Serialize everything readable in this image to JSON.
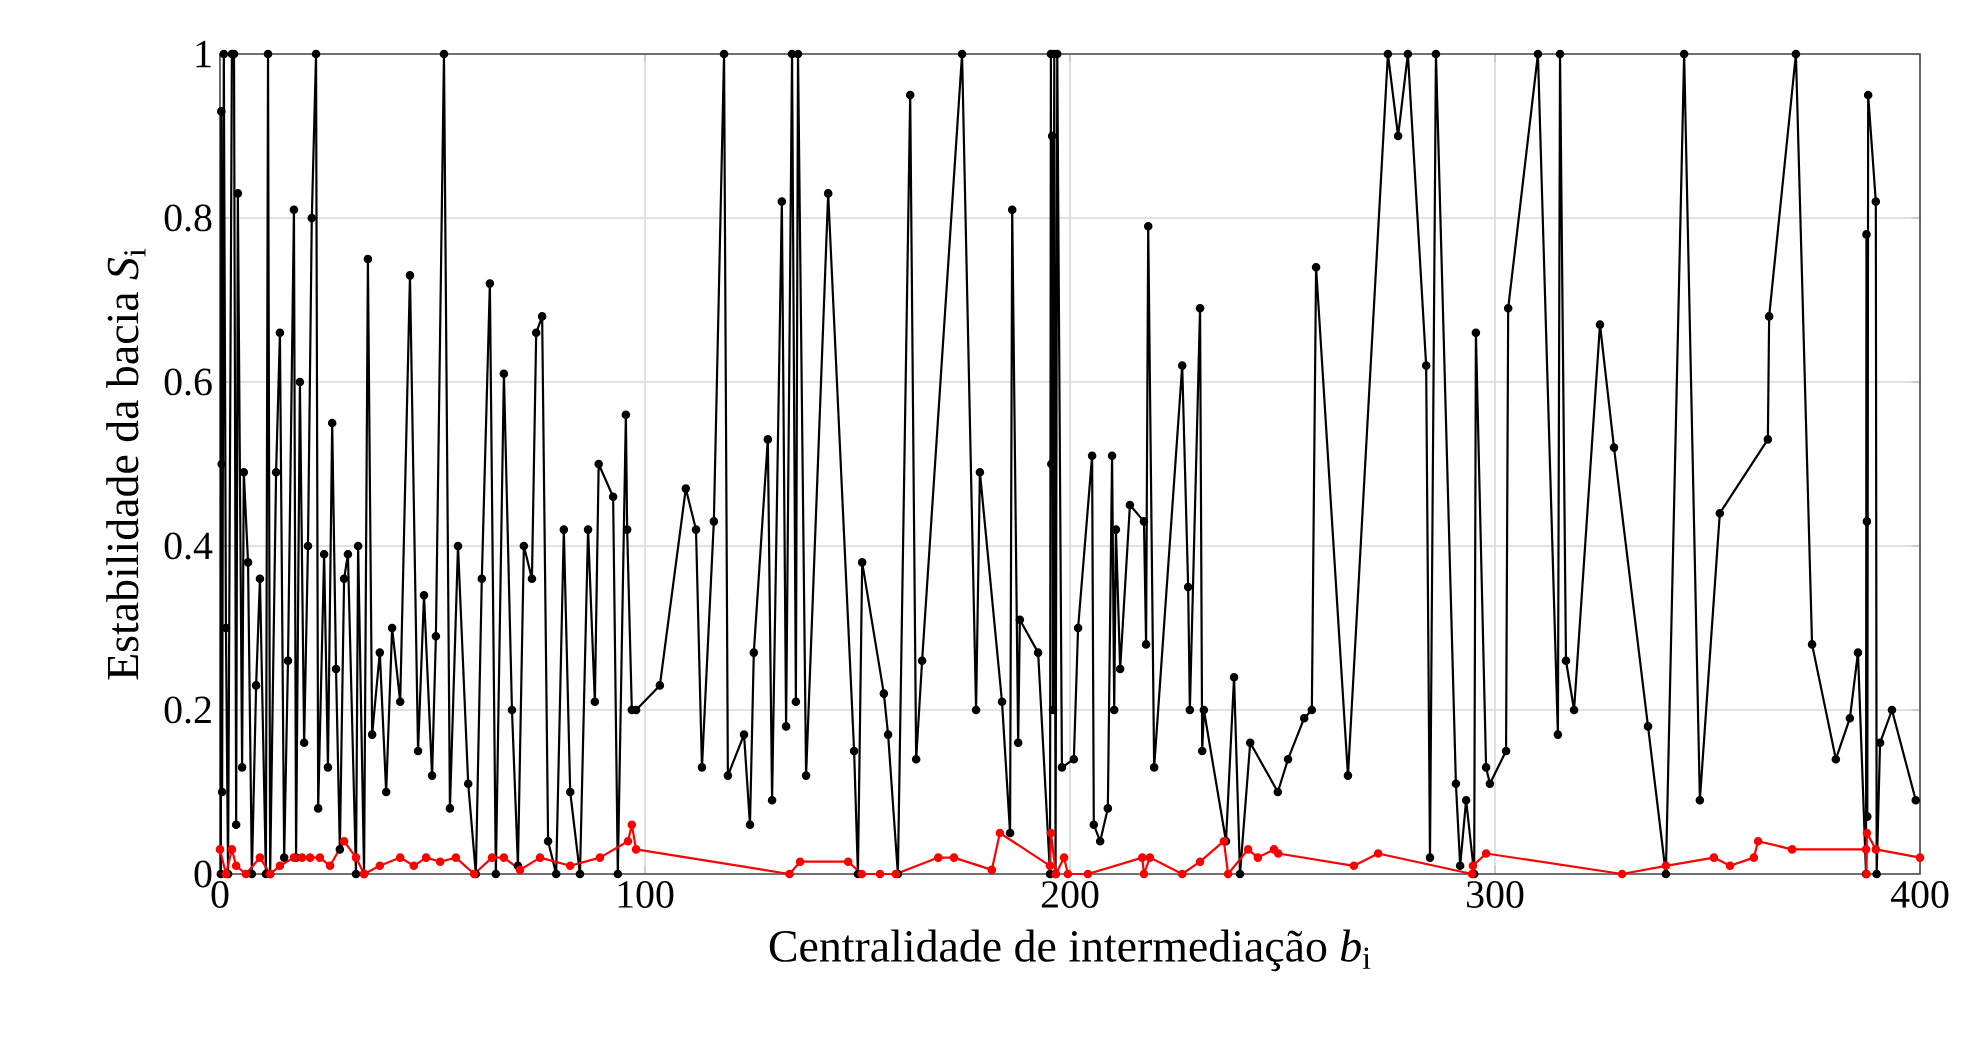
{
  "chart_data": {
    "type": "line",
    "xlabel": "Centralidade de intermediação *b*$_{i}$",
    "ylabel": "Estabilidade da bacia *S*$_{i}$",
    "xlim": [
      0,
      400
    ],
    "ylim": [
      0,
      1
    ],
    "xticks": [
      0,
      100,
      200,
      300,
      400
    ],
    "yticks": [
      0,
      0.2,
      0.4,
      0.6,
      0.8,
      1
    ],
    "grid": true,
    "marker": "circle",
    "line_style": "solid",
    "series": [
      {
        "color": "#000000",
        "x": [
          0.2,
          0.3,
          0.4,
          0.5,
          0.9,
          1.4,
          1.9,
          2.8,
          3.3,
          3.8,
          4.2,
          5.2,
          5.6,
          6.6,
          7.5,
          8.5,
          9.4,
          10.8,
          11.3,
          11.8,
          13.2,
          14.1,
          15.1,
          16.0,
          17.4,
          17.9,
          18.8,
          19.8,
          20.7,
          21.6,
          22.6,
          23.1,
          24.5,
          25.4,
          26.4,
          27.3,
          28.2,
          29.2,
          30.1,
          32.0,
          32.5,
          33.9,
          34.8,
          35.8,
          37.6,
          39.1,
          40.5,
          42.4,
          44.7,
          46.6,
          48.0,
          49.9,
          50.8,
          52.7,
          54.1,
          56.0,
          58.4,
          60.2,
          61.6,
          63.5,
          64.9,
          66.8,
          68.7,
          70.1,
          71.5,
          73.4,
          74.4,
          75.8,
          77.2,
          79.1,
          80.9,
          82.4,
          84.7,
          86.6,
          88.2,
          89.1,
          92.5,
          93.6,
          95.5,
          95.8,
          96.9,
          97.9,
          103.5,
          109.6,
          112.0,
          113.4,
          116.2,
          118.6,
          119.5,
          123.3,
          124.7,
          125.6,
          128.9,
          129.9,
          132.2,
          133.2,
          134.6,
          135.5,
          136.0,
          137.9,
          143.1,
          149.2,
          150.1,
          151.1,
          156.2,
          157.2,
          159.5,
          162.4,
          163.8,
          165.2,
          174.6,
          177.9,
          178.8,
          184.0,
          185.9,
          186.4,
          187.8,
          188.2,
          192.5,
          195.3,
          195.5,
          195.6,
          195.8,
          196.0,
          196.3,
          196.6,
          197.0,
          198.1,
          200.9,
          201.9,
          205.2,
          205.6,
          207.1,
          208.9,
          209.9,
          210.4,
          210.8,
          211.8,
          214.1,
          217.4,
          217.9,
          218.4,
          219.8,
          226.4,
          227.8,
          228.2,
          230.6,
          231.1,
          231.5,
          236.7,
          238.6,
          240.0,
          242.4,
          248.9,
          251.3,
          255.1,
          256.9,
          257.9,
          265.4,
          274.8,
          277.2,
          279.5,
          283.8,
          284.7,
          286.1,
          290.8,
          291.8,
          293.2,
          295.1,
          295.5,
          297.9,
          298.8,
          302.6,
          303.1,
          310.1,
          314.8,
          315.3,
          316.7,
          318.6,
          324.7,
          328.0,
          336.0,
          340.2,
          344.5,
          348.2,
          352.9,
          364.2,
          364.5,
          370.8,
          374.6,
          380.2,
          383.5,
          385.4,
          387.3,
          387.4,
          387.5,
          387.6,
          387.8,
          389.6,
          389.8,
          390.6,
          393.4,
          399.0
        ],
        "values": [
          0.0,
          0.93,
          0.5,
          0.1,
          1.0,
          0.3,
          0.0,
          1.0,
          1.0,
          0.06,
          0.83,
          0.13,
          0.49,
          0.38,
          0.0,
          0.23,
          0.36,
          0.0,
          1.0,
          0.0,
          0.49,
          0.66,
          0.02,
          0.26,
          0.81,
          0.02,
          0.6,
          0.16,
          0.4,
          0.8,
          1.0,
          0.08,
          0.39,
          0.13,
          0.55,
          0.25,
          0.03,
          0.36,
          0.39,
          0.0,
          0.4,
          0.0,
          0.75,
          0.17,
          0.27,
          0.1,
          0.3,
          0.21,
          0.73,
          0.15,
          0.34,
          0.12,
          0.29,
          1.0,
          0.08,
          0.4,
          0.11,
          0.0,
          0.36,
          0.72,
          0.0,
          0.61,
          0.2,
          0.01,
          0.4,
          0.36,
          0.66,
          0.68,
          0.04,
          0.0,
          0.42,
          0.1,
          0.0,
          0.42,
          0.21,
          0.5,
          0.46,
          0.0,
          0.56,
          0.42,
          0.2,
          0.2,
          0.23,
          0.47,
          0.42,
          0.13,
          0.43,
          1.0,
          0.12,
          0.17,
          0.06,
          0.27,
          0.53,
          0.09,
          0.82,
          0.18,
          1.0,
          0.21,
          1.0,
          0.12,
          0.83,
          0.15,
          0.0,
          0.38,
          0.22,
          0.17,
          0.0,
          0.95,
          0.14,
          0.26,
          1.0,
          0.2,
          0.49,
          0.21,
          0.05,
          0.81,
          0.16,
          0.31,
          0.27,
          0.0,
          1.0,
          0.5,
          0.9,
          0.2,
          1.0,
          0.0,
          1.0,
          0.13,
          0.14,
          0.3,
          0.51,
          0.06,
          0.04,
          0.08,
          0.51,
          0.2,
          0.42,
          0.25,
          0.45,
          0.43,
          0.28,
          0.79,
          0.13,
          0.62,
          0.35,
          0.2,
          0.69,
          0.15,
          0.2,
          0.04,
          0.24,
          0.0,
          0.16,
          0.1,
          0.14,
          0.19,
          0.2,
          0.74,
          0.12,
          1.0,
          0.9,
          1.0,
          0.62,
          0.02,
          1.0,
          0.11,
          0.01,
          0.09,
          0.0,
          0.66,
          0.13,
          0.11,
          0.15,
          0.69,
          1.0,
          0.17,
          1.0,
          0.26,
          0.2,
          0.67,
          0.52,
          0.18,
          0.0,
          1.0,
          0.09,
          0.44,
          0.53,
          0.68,
          1.0,
          0.28,
          0.14,
          0.19,
          0.27,
          0.0,
          0.78,
          0.43,
          0.07,
          0.95,
          0.82,
          0.0,
          0.16,
          0.2,
          0.09
        ]
      },
      {
        "color": "#ff0000",
        "x": [
          0.0,
          1.4,
          2.8,
          3.8,
          6.1,
          9.4,
          11.8,
          14.1,
          17.4,
          19.3,
          21.2,
          23.5,
          25.9,
          29.2,
          32.0,
          33.9,
          37.6,
          42.4,
          45.6,
          48.5,
          51.8,
          55.5,
          59.8,
          64.0,
          66.8,
          70.6,
          75.3,
          82.4,
          89.4,
          96.0,
          96.9,
          97.9,
          134.0,
          136.5,
          147.8,
          151.0,
          155.3,
          159.0,
          169.0,
          172.7,
          181.6,
          183.5,
          195.3,
          195.5,
          196.7,
          198.6,
          199.5,
          204.2,
          217.0,
          217.4,
          218.8,
          226.4,
          230.6,
          236.2,
          237.2,
          241.9,
          244.2,
          248.0,
          249.0,
          266.8,
          272.5,
          294.6,
          294.8,
          297.9,
          329.9,
          340.2,
          351.5,
          355.3,
          360.9,
          361.9,
          369.9,
          387.3,
          387.4,
          387.5,
          389.6,
          400.0
        ],
        "values": [
          0.03,
          0.0,
          0.03,
          0.01,
          0.0,
          0.02,
          0.0,
          0.01,
          0.02,
          0.02,
          0.02,
          0.02,
          0.01,
          0.04,
          0.02,
          0.0,
          0.01,
          0.02,
          0.01,
          0.02,
          0.015,
          0.02,
          0.0,
          0.02,
          0.02,
          0.005,
          0.02,
          0.01,
          0.02,
          0.04,
          0.06,
          0.03,
          0.0,
          0.015,
          0.015,
          0.0,
          0.0,
          0.0,
          0.02,
          0.02,
          0.005,
          0.05,
          0.01,
          0.05,
          0.0,
          0.02,
          0.0,
          0.0,
          0.02,
          0.0,
          0.02,
          0.0,
          0.015,
          0.04,
          0.0,
          0.03,
          0.02,
          0.03,
          0.025,
          0.01,
          0.025,
          0.0,
          0.01,
          0.025,
          0.0,
          0.01,
          0.02,
          0.01,
          0.02,
          0.04,
          0.03,
          0.03,
          0.0,
          0.05,
          0.03,
          0.02
        ]
      }
    ]
  }
}
